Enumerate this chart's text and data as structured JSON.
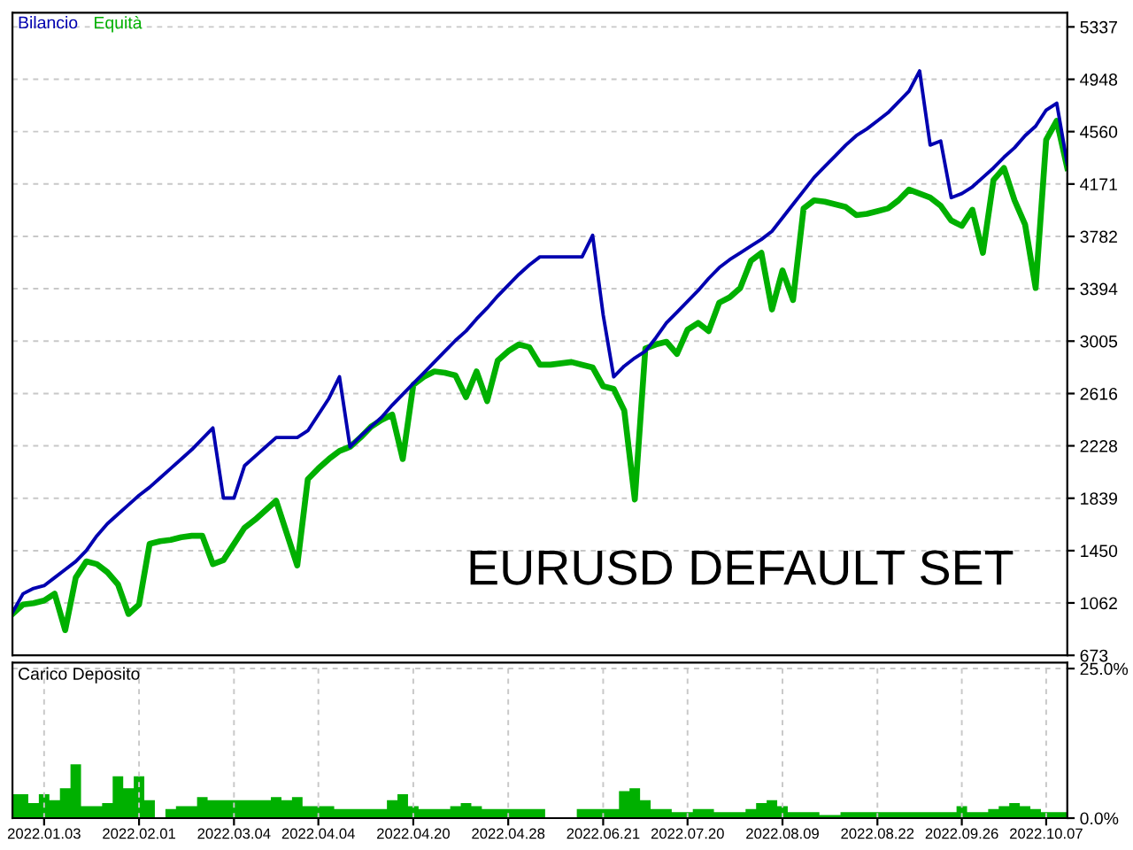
{
  "chart_data": [
    {
      "type": "line",
      "grid": true,
      "tick_labels": "y",
      "legend": "top left",
      "line_style": "solid",
      "marker": "none",
      "annotations": [
        "EURUSD DEFAULT SET"
      ],
      "categories": [
        null,
        null,
        null,
        null,
        null,
        null,
        null,
        null,
        null,
        null,
        null,
        null,
        null,
        null,
        null,
        null,
        null,
        null,
        null,
        null,
        null,
        null,
        null,
        null,
        null,
        null,
        null,
        null,
        null,
        null,
        null,
        null,
        null,
        null,
        null,
        null,
        null,
        null,
        null,
        null,
        null,
        null,
        null,
        null,
        null,
        null,
        null,
        null,
        null,
        null,
        null,
        null,
        null,
        null,
        null,
        null,
        null,
        null,
        null,
        null,
        null,
        null,
        null,
        null,
        null,
        null,
        null,
        null,
        null,
        null,
        null,
        null,
        null,
        null,
        null,
        null,
        null,
        null,
        null,
        null,
        null,
        null,
        null,
        null,
        null,
        null,
        null,
        null,
        null,
        null,
        null,
        null,
        null,
        null,
        null,
        null,
        null,
        null,
        null,
        null,
        null
      ],
      "ylim": [
        673,
        5442
      ],
      "yticks": [
        673,
        1062,
        1450,
        1839,
        2228,
        2616,
        3005,
        3394,
        3782,
        4171,
        4560,
        4948,
        5337
      ],
      "series": [
        {
          "name": "Bilancio",
          "color": "#0000b0",
          "values": [
            990,
            1130,
            1170,
            1190,
            1250,
            1310,
            1370,
            1450,
            1560,
            1650,
            1720,
            1790,
            1860,
            1920,
            1990,
            2060,
            2130,
            2200,
            2280,
            2360,
            1840,
            1840,
            2080,
            2150,
            2220,
            2290,
            2290,
            2290,
            2340,
            2460,
            2580,
            2740,
            2220,
            2300,
            2370,
            2440,
            2530,
            2610,
            2690,
            2770,
            2850,
            2930,
            3010,
            3080,
            3170,
            3250,
            3340,
            3420,
            3500,
            3570,
            3630,
            3630,
            3630,
            3630,
            3630,
            3790,
            3200,
            2740,
            2820,
            2880,
            2930,
            3030,
            3140,
            3220,
            3300,
            3380,
            3470,
            3550,
            3610,
            3660,
            3710,
            3760,
            3820,
            3920,
            4020,
            4120,
            4220,
            4300,
            4380,
            4460,
            4530,
            4580,
            4640,
            4700,
            4780,
            4860,
            5010,
            4460,
            4490,
            4070,
            4100,
            4150,
            4220,
            4290,
            4370,
            4440,
            4530,
            4600,
            4720,
            4770,
            4320
          ]
        },
        {
          "name": "Equità",
          "color": "#00b000",
          "values": [
            980,
            1050,
            1060,
            1080,
            1130,
            860,
            1250,
            1370,
            1350,
            1290,
            1200,
            980,
            1050,
            1500,
            1520,
            1530,
            1550,
            1560,
            1560,
            1350,
            1380,
            1500,
            1620,
            1680,
            1750,
            1820,
            1580,
            1340,
            1980,
            2060,
            2130,
            2190,
            2220,
            2290,
            2370,
            2420,
            2460,
            2130,
            2680,
            2740,
            2780,
            2770,
            2750,
            2590,
            2780,
            2560,
            2860,
            2930,
            2980,
            2960,
            2830,
            2830,
            2840,
            2850,
            2830,
            2810,
            2670,
            2650,
            2490,
            1830,
            2950,
            2980,
            3000,
            2910,
            3090,
            3140,
            3080,
            3290,
            3330,
            3400,
            3600,
            3660,
            3240,
            3530,
            3310,
            3990,
            4050,
            4040,
            4020,
            4000,
            3940,
            3950,
            3970,
            3990,
            4050,
            4130,
            4100,
            4070,
            4010,
            3900,
            3860,
            3980,
            3660,
            4200,
            4290,
            4050,
            3870,
            3400,
            4500,
            4640,
            4290
          ]
        }
      ]
    },
    {
      "type": "area",
      "title": "Carico Deposito",
      "grid": true,
      "categories": [
        null,
        null,
        null,
        "2022.01.03",
        null,
        null,
        null,
        null,
        null,
        null,
        null,
        null,
        "2022.02.01",
        null,
        null,
        null,
        null,
        null,
        null,
        null,
        null,
        "2022.03.04",
        null,
        null,
        null,
        null,
        null,
        null,
        null,
        "2022.04.04",
        null,
        null,
        null,
        null,
        null,
        null,
        null,
        null,
        "2022.04.20",
        null,
        null,
        null,
        null,
        null,
        null,
        null,
        null,
        "2022.04.28",
        null,
        null,
        null,
        null,
        null,
        null,
        null,
        null,
        "2022.06.21",
        null,
        null,
        null,
        null,
        null,
        null,
        null,
        "2022.07.20",
        null,
        null,
        null,
        null,
        null,
        null,
        null,
        null,
        "2022.08.09",
        null,
        null,
        null,
        null,
        null,
        null,
        null,
        null,
        "2022.08.22",
        null,
        null,
        null,
        null,
        null,
        null,
        null,
        "2022.09.26",
        null,
        null,
        null,
        null,
        null,
        null,
        null,
        "2022.10.07",
        null,
        null
      ],
      "ylim": [
        0,
        26
      ],
      "yticks": [
        {
          "value": 0,
          "label": "0.0%"
        },
        {
          "value": 25,
          "label": "25.0%"
        }
      ],
      "series": [
        {
          "color": "#00b000",
          "values": [
            4,
            4,
            2.5,
            4,
            3,
            5,
            9,
            2,
            2,
            2.5,
            7,
            5,
            7,
            3,
            0,
            1.5,
            2,
            2,
            3.5,
            3,
            3,
            3,
            3,
            3,
            3,
            3.5,
            3,
            3.5,
            2,
            2,
            2,
            1.5,
            1.5,
            1.5,
            1.5,
            1.5,
            3,
            4,
            2,
            1.5,
            1.5,
            1.5,
            2,
            2.5,
            2,
            1.5,
            1.5,
            1.5,
            1.5,
            1.5,
            1.5,
            0,
            0,
            0,
            1.5,
            1.5,
            1.5,
            1.5,
            4.5,
            5,
            3,
            1.5,
            1.5,
            1,
            1,
            1.5,
            1.5,
            1,
            1,
            1,
            1.5,
            2.5,
            3,
            2,
            1,
            1,
            1,
            0.5,
            0.5,
            1,
            1,
            1,
            1,
            1,
            1,
            1,
            1,
            1,
            1,
            1,
            2,
            1,
            1,
            1.5,
            2,
            2.5,
            2,
            1.5,
            1,
            1,
            1
          ]
        }
      ]
    }
  ]
}
